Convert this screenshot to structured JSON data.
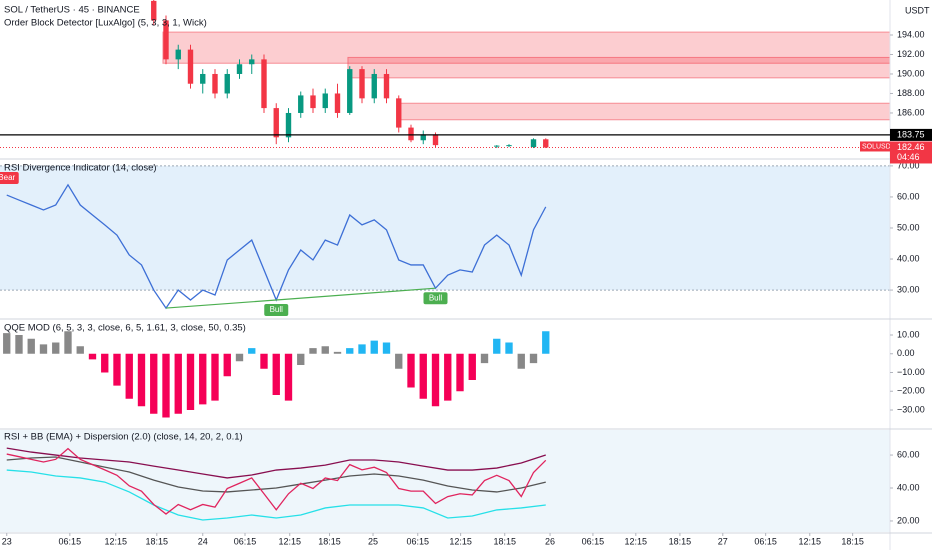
{
  "chart_data": [
    {
      "type": "candlestick",
      "title": "SOL / TetherUS · 45 · BINANCE",
      "subtitle": "Order Block Detector [LuxAlgo] (5, 3, 3, 1, Wick)",
      "axis_unit": "USDT",
      "up_color": "#089981",
      "down_color": "#f23645",
      "x": [
        24,
        26,
        28,
        30,
        32,
        34,
        36,
        38,
        40,
        42,
        44,
        46,
        48,
        50,
        52,
        54,
        56,
        58,
        60,
        62,
        64,
        66,
        68,
        70,
        80,
        82,
        86,
        88
      ],
      "open": [
        197.5,
        195.5,
        191.5,
        192.5,
        189,
        190,
        188,
        190,
        191,
        191.5,
        186.5,
        183.5,
        186,
        187.8,
        186.5,
        188,
        186,
        190.5,
        187.5,
        190,
        187.5,
        184.5,
        183.2,
        183.8,
        182.6,
        182.6,
        182.5,
        183.3
      ],
      "high": [
        197.6,
        196,
        193,
        193,
        190.5,
        190.5,
        190.5,
        191.5,
        192,
        192,
        187,
        186.5,
        188.2,
        188.5,
        188.5,
        189,
        190.8,
        190.8,
        190.5,
        190.5,
        187.8,
        184.8,
        184.2,
        184,
        182.7,
        182.8,
        183.4,
        183.4
      ],
      "low": [
        195,
        191,
        190.5,
        188.5,
        188,
        187.5,
        187.5,
        189.5,
        190,
        186,
        182.8,
        183,
        185.5,
        186,
        186,
        185.5,
        185.8,
        187,
        187,
        187,
        184,
        183,
        182.8,
        182.5,
        182.4,
        182.5,
        182.4,
        182.4
      ],
      "close": [
        195.5,
        191.5,
        192.5,
        189,
        190,
        188,
        190,
        191,
        191.5,
        186.5,
        183.5,
        186,
        187.8,
        186.5,
        188,
        186,
        190.5,
        187.5,
        190,
        187.5,
        184.5,
        183.2,
        183.8,
        182.7,
        182.65,
        182.7,
        183.3,
        182.46
      ],
      "zones": [
        {
          "x0": 25.5,
          "top": 194.3,
          "bottom": 191.1
        },
        {
          "x0": 55.7,
          "top": 191.7,
          "bottom": 189.6
        },
        {
          "x0": 63.8,
          "top": 187,
          "bottom": 185.3
        }
      ],
      "zone_color": "#f23645",
      "price_line": 183.75,
      "last_price": {
        "value": 182.46,
        "symbol": "SOLUSDT",
        "countdown": "04:46"
      },
      "ylim": [
        181.38,
        197.59
      ],
      "yticks": [
        {
          "value": 186,
          "label": "186.00"
        },
        {
          "value": 188,
          "label": "188.00"
        },
        {
          "value": 190,
          "label": "190.00"
        },
        {
          "value": 192,
          "label": "192.00"
        },
        {
          "value": 194,
          "label": "194.00"
        }
      ]
    },
    {
      "type": "line",
      "title": "RSI Divergence Indicator (14, close)",
      "x": [
        0,
        2,
        4,
        6,
        8,
        10,
        12,
        14,
        16,
        18,
        20,
        22,
        24,
        26,
        28,
        30,
        32,
        34,
        36,
        38,
        40,
        42,
        44,
        46,
        48,
        50,
        52,
        54,
        56,
        58,
        60,
        62,
        64,
        66,
        68,
        70,
        72,
        74,
        76,
        78,
        80,
        82,
        84,
        86,
        88
      ],
      "series": [
        {
          "color": "#3d6fd6",
          "values": [
            60.6,
            59,
            57.4,
            55.8,
            57.4,
            63.9,
            57.4,
            54.2,
            51,
            47.7,
            41.3,
            38.1,
            30,
            24.2,
            30,
            26.8,
            30,
            28.4,
            39.7,
            42.9,
            46.1,
            36.5,
            26.8,
            36.5,
            42.9,
            39.7,
            46.1,
            44.5,
            54.2,
            51,
            52.6,
            49.4,
            39.7,
            38.1,
            38.1,
            30.6,
            34.8,
            36.5,
            35.8,
            44.5,
            47.7,
            44.5,
            34.8,
            49.4,
            56.8
          ]
        }
      ],
      "band": [
        30,
        70
      ],
      "band_color": "#e3f0fb",
      "divergence": {
        "color": "#4caf50",
        "x": [
          26,
          44,
          70
        ],
        "values": [
          24.2,
          26.8,
          30.6
        ]
      },
      "annotations": [
        {
          "x": 0,
          "label": "Bear",
          "color": "#f23645"
        },
        {
          "x": 44,
          "label": "Bull",
          "color": "#4caf50"
        },
        {
          "x": 70,
          "label": "Bull",
          "color": "#4caf50"
        }
      ],
      "ylim": [
        21,
        71.9
      ],
      "yticks": [
        {
          "value": 30,
          "label": "30.00"
        },
        {
          "value": 40,
          "label": "40.00"
        },
        {
          "value": 50,
          "label": "50.00"
        },
        {
          "value": 60,
          "label": "60.00"
        },
        {
          "value": 70,
          "label": "70.00"
        }
      ]
    },
    {
      "type": "bar",
      "title": "QQE MOD (6, 5, 3, 3, close, 6, 5, 1.61, 3, close, 50, 0.35)",
      "x": [
        0,
        2,
        4,
        6,
        8,
        10,
        12,
        14,
        16,
        18,
        20,
        22,
        24,
        26,
        28,
        30,
        32,
        34,
        36,
        38,
        40,
        42,
        44,
        46,
        48,
        50,
        52,
        54,
        56,
        58,
        60,
        62,
        64,
        66,
        68,
        70,
        72,
        74,
        76,
        78,
        80,
        82,
        84,
        86,
        88
      ],
      "values": [
        11,
        10,
        8,
        5,
        6,
        12,
        4,
        -3,
        -10,
        -17,
        -24,
        -28,
        -32,
        -34,
        -32,
        -30,
        -27,
        -25,
        -12,
        -4,
        3,
        -8,
        -22,
        -25,
        -6,
        3,
        4,
        1,
        3,
        5,
        7,
        6,
        -8,
        -18,
        -24,
        -28,
        -25,
        -20,
        -14,
        -5,
        8,
        6,
        -8,
        -5,
        12
      ],
      "bar_colors": [
        "#888888",
        "#888888",
        "#888888",
        "#888888",
        "#888888",
        "#888888",
        "#888888",
        "#f50057",
        "#f50057",
        "#f50057",
        "#f50057",
        "#f50057",
        "#f50057",
        "#f50057",
        "#f50057",
        "#f50057",
        "#f50057",
        "#f50057",
        "#f50057",
        "#888888",
        "#21b6f3",
        "#f50057",
        "#f50057",
        "#f50057",
        "#888888",
        "#888888",
        "#888888",
        "#888888",
        "#21b6f3",
        "#21b6f3",
        "#21b6f3",
        "#21b6f3",
        "#888888",
        "#f50057",
        "#f50057",
        "#f50057",
        "#f50057",
        "#f50057",
        "#f50057",
        "#888888",
        "#21b6f3",
        "#21b6f3",
        "#888888",
        "#888888",
        "#21b6f3"
      ],
      "ylim": [
        -39.6,
        18
      ],
      "yticks": [
        {
          "value": -30,
          "label": "−30.00"
        },
        {
          "value": -20,
          "label": "−20.00"
        },
        {
          "value": -10,
          "label": "−10.00"
        },
        {
          "value": 0,
          "label": "0.00"
        },
        {
          "value": 10,
          "label": "10.00"
        }
      ]
    },
    {
      "type": "line",
      "title": "RSI + BB (EMA) + Dispersion (2.0) (close, 14, 20, 2, 0.1)",
      "x": [
        0,
        4,
        8,
        12,
        16,
        20,
        24,
        28,
        32,
        36,
        40,
        44,
        48,
        52,
        56,
        60,
        64,
        68,
        72,
        76,
        80,
        84,
        88
      ],
      "series": [
        {
          "color": "#880e4f",
          "values": [
            64.2,
            61.8,
            60,
            58.2,
            57,
            55.8,
            53.3,
            50.9,
            48.5,
            46.1,
            47.9,
            50.9,
            52.1,
            53.9,
            57,
            57,
            55.8,
            53.3,
            50.9,
            50.9,
            52.1,
            55.2,
            60
          ]
        },
        {
          "color": "#555555",
          "values": [
            57,
            58.2,
            58.8,
            55.8,
            52.7,
            49.7,
            44.8,
            40.6,
            38.2,
            37.6,
            38.8,
            40,
            42.4,
            44.8,
            47.3,
            48.5,
            47.3,
            44.8,
            41.2,
            38.8,
            37.6,
            40,
            43.6
          ]
        },
        {
          "color": "#26e0e8",
          "values": [
            50.9,
            49.7,
            47.3,
            46.1,
            43.6,
            37.6,
            29.7,
            23.6,
            20.6,
            21.8,
            23.6,
            21.8,
            23.6,
            27.9,
            29.7,
            29.7,
            29.7,
            27.9,
            21.8,
            23,
            26.7,
            27.9,
            29.7
          ]
        }
      ],
      "rsi_color": "#e0245e",
      "band_color": "#eef6fb",
      "ylim": [
        13.3,
        75.2
      ],
      "yticks": [
        {
          "value": 20,
          "label": "20.00"
        },
        {
          "value": 40,
          "label": "40.00"
        },
        {
          "value": 60,
          "label": "60.00"
        }
      ],
      "xlim": [
        -1.1,
        144.2
      ],
      "xticks": [
        {
          "value": 0,
          "label": "23"
        },
        {
          "value": 10.3,
          "label": "06:15"
        },
        {
          "value": 17.8,
          "label": "12:15"
        },
        {
          "value": 24.5,
          "label": "18:15"
        },
        {
          "value": 32,
          "label": "24"
        },
        {
          "value": 38.9,
          "label": "06:15"
        },
        {
          "value": 46.2,
          "label": "12:15"
        },
        {
          "value": 52.7,
          "label": "18:15"
        },
        {
          "value": 59.8,
          "label": "25"
        },
        {
          "value": 67.1,
          "label": "06:15"
        },
        {
          "value": 74.1,
          "label": "12:15"
        },
        {
          "value": 81.3,
          "label": "18:15"
        },
        {
          "value": 88.7,
          "label": "26"
        },
        {
          "value": 95.7,
          "label": "06:15"
        },
        {
          "value": 102.7,
          "label": "12:15"
        },
        {
          "value": 109.9,
          "label": "18:15"
        },
        {
          "value": 116.9,
          "label": "27"
        },
        {
          "value": 123.9,
          "label": "06:15"
        },
        {
          "value": 131.1,
          "label": "12:15"
        },
        {
          "value": 138.1,
          "label": "18:15"
        }
      ]
    }
  ]
}
